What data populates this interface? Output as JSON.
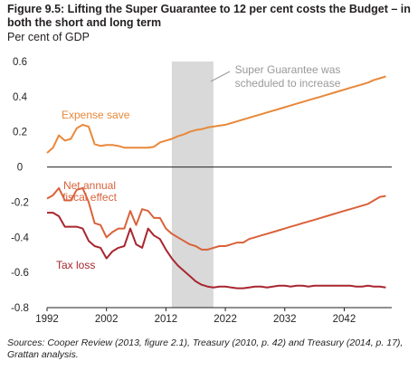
{
  "title": "Figure 9.5: Lifting the Super Guarantee to 12 per cent costs the Budget – in both the short and long term",
  "units": "Per cent of GDP",
  "source": "Sources: Cooper Review (2013, figure 2.1), Treasury (2010, p. 42) and Treasury (2014, p. 17), Grattan analysis.",
  "colors": {
    "expense": "#e8883a",
    "net": "#d9623b",
    "tax": "#a8262f",
    "shade": "#d9d9d9",
    "callout": "#999999"
  },
  "chart_data": {
    "type": "line",
    "x": [
      1992,
      1993,
      1994,
      1995,
      1996,
      1997,
      1998,
      1999,
      2000,
      2001,
      2002,
      2003,
      2004,
      2005,
      2006,
      2007,
      2008,
      2009,
      2010,
      2011,
      2012,
      2013,
      2014,
      2015,
      2016,
      2017,
      2018,
      2019,
      2020,
      2021,
      2022,
      2023,
      2024,
      2025,
      2026,
      2027,
      2028,
      2029,
      2030,
      2031,
      2032,
      2033,
      2034,
      2035,
      2036,
      2037,
      2038,
      2039,
      2040,
      2041,
      2042,
      2043,
      2044,
      2045,
      2046,
      2047,
      2048,
      2049
    ],
    "series": [
      {
        "name": "Expense save",
        "values": [
          0.08,
          0.11,
          0.18,
          0.15,
          0.16,
          0.22,
          0.24,
          0.23,
          0.13,
          0.12,
          0.125,
          0.125,
          0.12,
          0.11,
          0.11,
          0.11,
          0.11,
          0.11,
          0.115,
          0.14,
          0.15,
          0.16,
          0.175,
          0.185,
          0.2,
          0.21,
          0.215,
          0.225,
          0.23,
          0.235,
          0.24,
          0.25,
          0.26,
          0.27,
          0.28,
          0.29,
          0.3,
          0.31,
          0.32,
          0.33,
          0.34,
          0.35,
          0.36,
          0.37,
          0.38,
          0.39,
          0.4,
          0.41,
          0.42,
          0.43,
          0.44,
          0.45,
          0.46,
          0.47,
          0.48,
          0.495,
          0.505,
          0.515
        ]
      },
      {
        "name": "Net annual fiscal effect",
        "values": [
          -0.18,
          -0.16,
          -0.12,
          -0.19,
          -0.19,
          -0.13,
          -0.12,
          -0.2,
          -0.32,
          -0.33,
          -0.4,
          -0.37,
          -0.35,
          -0.35,
          -0.25,
          -0.33,
          -0.24,
          -0.25,
          -0.29,
          -0.29,
          -0.35,
          -0.38,
          -0.4,
          -0.42,
          -0.44,
          -0.45,
          -0.47,
          -0.47,
          -0.46,
          -0.45,
          -0.45,
          -0.44,
          -0.43,
          -0.43,
          -0.41,
          -0.4,
          -0.39,
          -0.38,
          -0.37,
          -0.36,
          -0.35,
          -0.34,
          -0.33,
          -0.32,
          -0.31,
          -0.3,
          -0.29,
          -0.28,
          -0.27,
          -0.26,
          -0.25,
          -0.24,
          -0.23,
          -0.22,
          -0.21,
          -0.19,
          -0.17,
          -0.165
        ]
      },
      {
        "name": "Tax loss",
        "values": [
          -0.26,
          -0.26,
          -0.28,
          -0.34,
          -0.34,
          -0.34,
          -0.35,
          -0.42,
          -0.45,
          -0.46,
          -0.52,
          -0.48,
          -0.46,
          -0.45,
          -0.35,
          -0.44,
          -0.46,
          -0.35,
          -0.39,
          -0.41,
          -0.47,
          -0.52,
          -0.56,
          -0.59,
          -0.62,
          -0.65,
          -0.67,
          -0.68,
          -0.685,
          -0.68,
          -0.68,
          -0.685,
          -0.69,
          -0.69,
          -0.685,
          -0.68,
          -0.68,
          -0.685,
          -0.68,
          -0.675,
          -0.675,
          -0.68,
          -0.675,
          -0.675,
          -0.68,
          -0.675,
          -0.675,
          -0.675,
          -0.675,
          -0.675,
          -0.675,
          -0.675,
          -0.68,
          -0.68,
          -0.675,
          -0.68,
          -0.68,
          -0.685
        ]
      }
    ],
    "xticks": [
      1992,
      2002,
      2012,
      2022,
      2032,
      2042
    ],
    "xlim": [
      1992,
      2050
    ],
    "yticks": [
      0.6,
      0.4,
      0.2,
      0,
      -0.2,
      -0.4,
      -0.6,
      -0.8
    ],
    "ylim": [
      -0.8,
      0.6
    ],
    "shaded_region": [
      2013,
      2020
    ],
    "annotations": {
      "expense_label": "Expense save",
      "net_label_1": "Net annual",
      "net_label_2": "fiscal effect",
      "tax_label": "Tax loss",
      "callout_1": "Super Guarantee was",
      "callout_2": "scheduled to increase"
    }
  }
}
